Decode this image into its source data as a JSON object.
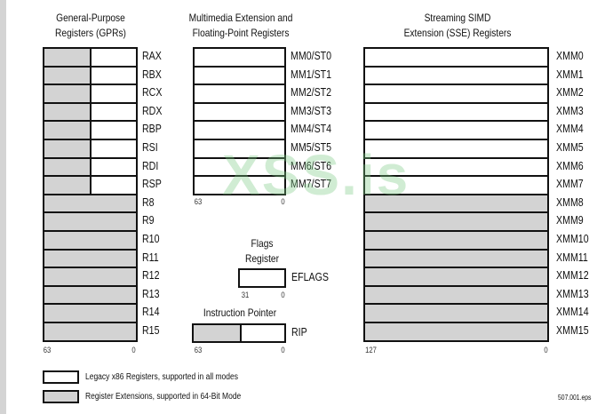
{
  "gpr": {
    "title1": "General-Purpose",
    "title2": "Registers (GPRs)",
    "legacy": [
      "RAX",
      "RBX",
      "RCX",
      "RDX",
      "RBP",
      "RSI",
      "RDI",
      "RSP"
    ],
    "ext": [
      "R8",
      "R9",
      "R10",
      "R11",
      "R12",
      "R13",
      "R14",
      "R15"
    ],
    "bit_hi": "63",
    "bit_lo": "0"
  },
  "mmx": {
    "title1": "Multimedia Extension and",
    "title2": "Floating-Point Registers",
    "regs": [
      "MM0/ST0",
      "MM1/ST1",
      "MM2/ST2",
      "MM3/ST3",
      "MM4/ST4",
      "MM5/ST5",
      "MM6/ST6",
      "MM7/ST7"
    ],
    "bit_hi": "63",
    "bit_lo": "0"
  },
  "sse": {
    "title1": "Streaming SIMD",
    "title2": "Extension (SSE) Registers",
    "legacy": [
      "XMM0",
      "XMM1",
      "XMM2",
      "XMM3",
      "XMM4",
      "XMM5",
      "XMM6",
      "XMM7"
    ],
    "ext": [
      "XMM8",
      "XMM9",
      "XMM10",
      "XMM11",
      "XMM12",
      "XMM13",
      "XMM14",
      "XMM15"
    ],
    "bit_hi": "127",
    "bit_lo": "0"
  },
  "flags": {
    "title1": "Flags",
    "title2": "Register",
    "name": "EFLAGS",
    "bit_hi": "31",
    "bit_lo": "0"
  },
  "rip": {
    "title": "Instruction Pointer",
    "name": "RIP",
    "bit_hi": "63",
    "bit_lo": "0"
  },
  "legend": {
    "legacy": "Legacy x86 Registers, supported in all modes",
    "ext": "Register Extensions, supported in 64-Bit Mode",
    "legacy_color": "#ffffff",
    "ext_color": "#d3d3d3"
  },
  "file": "507.001.eps",
  "watermark": "XSS.is"
}
